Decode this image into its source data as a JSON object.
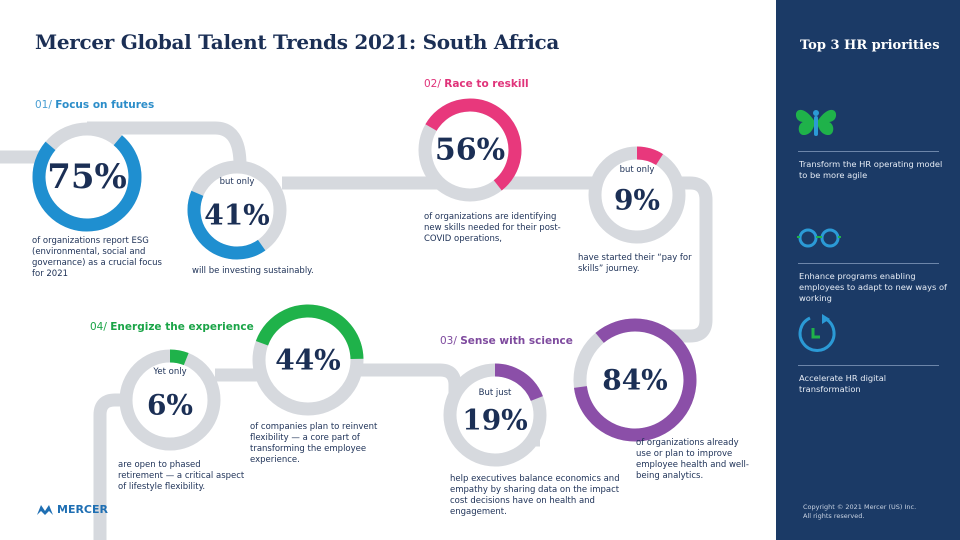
{
  "title": "Mercer Global Talent Trends 2021: South Africa",
  "sections": [
    {
      "num": "01/",
      "label": "Focus on futures",
      "color": "#2b8dc9"
    },
    {
      "num": "02/",
      "label": "Race to reskill",
      "color": "#e0337a"
    },
    {
      "num": "03/",
      "label": "Sense with science",
      "color": "#7e4a9e"
    },
    {
      "num": "04/",
      "label": "Energize the experience",
      "color": "#1aa447"
    }
  ],
  "stats": [
    {
      "value": 75,
      "text": "75%",
      "pre": "",
      "desc": "of organizations report ESG (environmental, social and governance) as a crucial focus for 2021",
      "color": "#1f8fd0"
    },
    {
      "value": 41,
      "text": "41%",
      "pre": "but only",
      "desc": "will be investing sustainably.",
      "color": "#1f8fd0"
    },
    {
      "value": 56,
      "text": "56%",
      "pre": "",
      "desc": "of organizations are identifying new skills needed for their post-COVID operations,",
      "color": "#e8387c"
    },
    {
      "value": 9,
      "text": "9%",
      "pre": "but only",
      "desc": "have started their “pay for skills” journey.",
      "color": "#e8387c"
    },
    {
      "value": 84,
      "text": "84%",
      "pre": "",
      "desc": "of organizations already use or plan to improve employee health and well-being analytics.",
      "color": "#8b4fa8"
    },
    {
      "value": 19,
      "text": "19%",
      "pre": "But just",
      "desc": "help executives balance economics and empathy by sharing data on the impact cost decisions have on health and engagement.",
      "color": "#8b4fa8"
    },
    {
      "value": 44,
      "text": "44%",
      "pre": "",
      "desc": "of companies plan to reinvent flexibility — a core part of transforming the employee experience.",
      "color": "#1fb24a"
    },
    {
      "value": 6,
      "text": "6%",
      "pre": "Yet only",
      "desc": "are open to phased retirement — a  critical aspect of lifestyle flexibility.",
      "color": "#1fb24a"
    }
  ],
  "logo": "MERCER",
  "panel": {
    "title": "Top 3 HR priorities",
    "items": [
      {
        "icon": "butterfly-icon",
        "text": "Transform the HR operating model to be more agile"
      },
      {
        "icon": "glasses-icon",
        "text": "Enhance programs enabling employees to adapt to new ways of working"
      },
      {
        "icon": "clock-refresh-icon",
        "text": "Accelerate HR digital transformation"
      }
    ],
    "copyright_1": "Copyright © 2021 Mercer (US) Inc.",
    "copyright_2": "All rights reserved."
  }
}
